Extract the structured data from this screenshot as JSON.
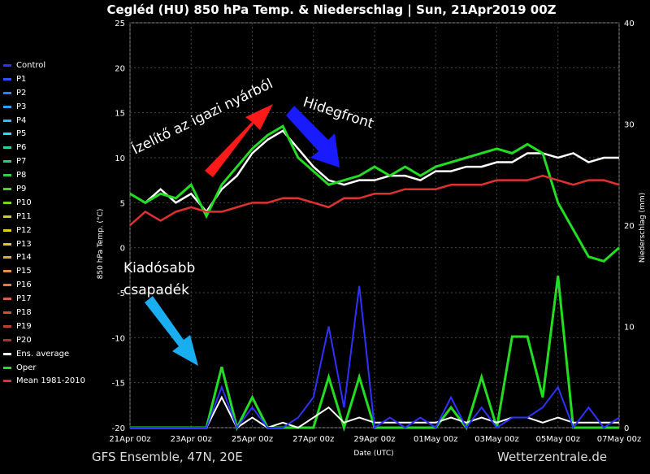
{
  "chart_data": {
    "type": "line",
    "title": "Cegléd  (HU)  850 hPa Temp. & Niederschlag | Sun, 21Apr2019 00Z",
    "xlabel": "Date (UTC)",
    "ylabel_left": "850 hPa Temp. (°C)",
    "ylabel_right": "Niederschlag (mm)",
    "ylim_left": [
      -20,
      25
    ],
    "ylim_right": [
      0,
      40
    ],
    "y_ticks_left": [
      "25",
      "20",
      "15",
      "10",
      "5",
      "0",
      "-5",
      "-10",
      "-15",
      "-20"
    ],
    "y_ticks_right": [
      "40",
      "30",
      "20",
      "10",
      "0"
    ],
    "x_ticks": [
      "21Apr 00z",
      "23Apr 00z",
      "25Apr 00z",
      "27Apr 00z",
      "29Apr 00z",
      "01May 00z",
      "03May 00z",
      "05May 00z",
      "07May 00z"
    ],
    "grid": true,
    "legend_position": "left",
    "days": [
      0,
      0.5,
      1,
      1.5,
      2,
      2.5,
      3,
      3.5,
      4,
      4.5,
      5,
      5.5,
      6,
      6.5,
      7,
      7.5,
      8,
      8.5,
      9,
      9.5,
      10,
      10.5,
      11,
      11.5,
      12,
      12.5,
      13,
      13.5,
      14,
      14.5,
      15,
      15.5,
      16
    ],
    "series": [
      {
        "name": "Ens. average",
        "color": "#ffffff",
        "values": [
          6,
          5,
          6.5,
          5,
          6,
          4,
          6.5,
          8,
          10.5,
          12,
          13,
          11,
          9,
          7.5,
          7,
          7.5,
          7.5,
          8,
          8,
          7.5,
          8.5,
          8.5,
          9,
          9,
          9.5,
          9.5,
          10.5,
          10.5,
          10,
          10.5,
          9.5,
          10,
          10
        ]
      },
      {
        "name": "Oper",
        "color": "#22dd22",
        "values": [
          6,
          5,
          6,
          5.5,
          7,
          3.5,
          7,
          9,
          11,
          12.5,
          13.5,
          10,
          8.5,
          7,
          7.5,
          8,
          9,
          8,
          9,
          8,
          9,
          9.5,
          10,
          10.5,
          11,
          10.5,
          11.5,
          10.5,
          5,
          2,
          -1,
          -1.5,
          0
        ]
      },
      {
        "name": "Mean 1981-2010",
        "color": "#e03030",
        "values": [
          2.5,
          4,
          3,
          4,
          4.5,
          4,
          4,
          4.5,
          5,
          5,
          5.5,
          5.5,
          5,
          4.5,
          5.5,
          5.5,
          6,
          6,
          6.5,
          6.5,
          6.5,
          7,
          7,
          7,
          7.5,
          7.5,
          7.5,
          8,
          7.5,
          7,
          7.5,
          7.5,
          7
        ]
      }
    ],
    "precip_series": [
      {
        "name": "Oper",
        "color": "#22dd22",
        "values": [
          0,
          0,
          0,
          0,
          0,
          0,
          6,
          0,
          3,
          0,
          0,
          0,
          0,
          5,
          0,
          5,
          0,
          0,
          0,
          0,
          0,
          2,
          0,
          5,
          0,
          9,
          9,
          3,
          15,
          0,
          0,
          0,
          0
        ]
      },
      {
        "name": "Ens. average",
        "color": "#ffffff",
        "values": [
          0,
          0,
          0,
          0,
          0,
          0,
          3,
          0,
          1,
          0,
          0.5,
          0,
          1,
          2,
          0.5,
          1,
          0.5,
          0.5,
          0.5,
          0.5,
          0.5,
          1,
          0.5,
          1,
          0.5,
          1,
          1,
          0.5,
          1,
          0.5,
          0.5,
          0.5,
          0.5
        ]
      },
      {
        "name": "Control",
        "color": "#3030ff",
        "values": [
          0,
          0,
          0,
          0,
          0,
          0,
          4,
          0,
          2,
          0,
          0,
          1,
          3,
          10,
          2,
          14,
          0,
          1,
          0,
          1,
          0,
          3,
          0,
          2,
          0,
          1,
          1,
          2,
          4,
          0,
          2,
          0,
          1
        ]
      }
    ]
  },
  "legend": [
    {
      "label": "Control",
      "color": "#3030ff"
    },
    {
      "label": "P1",
      "color": "#2a55ff"
    },
    {
      "label": "P2",
      "color": "#2a7fff"
    },
    {
      "label": "P3",
      "color": "#2aa0ff"
    },
    {
      "label": "P4",
      "color": "#2ac0ff"
    },
    {
      "label": "P5",
      "color": "#2adcff"
    },
    {
      "label": "P6",
      "color": "#2ad0a0"
    },
    {
      "label": "P7",
      "color": "#2ad070"
    },
    {
      "label": "P8",
      "color": "#30d040"
    },
    {
      "label": "P9",
      "color": "#55d025"
    },
    {
      "label": "P10",
      "color": "#7cd020"
    },
    {
      "label": "P11",
      "color": "#c8d020"
    },
    {
      "label": "P12",
      "color": "#e0d020"
    },
    {
      "label": "P13",
      "color": "#e8c030"
    },
    {
      "label": "P14",
      "color": "#e8a830"
    },
    {
      "label": "P15",
      "color": "#e89040"
    },
    {
      "label": "P16",
      "color": "#e87840"
    },
    {
      "label": "P17",
      "color": "#d86040"
    },
    {
      "label": "P18",
      "color": "#d05030"
    },
    {
      "label": "P19",
      "color": "#c04030"
    },
    {
      "label": "P20",
      "color": "#b03030"
    },
    {
      "label": "Ens. average",
      "color": "#ffffff"
    },
    {
      "label": "Oper",
      "color": "#22dd22"
    },
    {
      "label": "Mean 1981-2010",
      "color": "#e03030"
    }
  ],
  "annotations": {
    "summer_taste": "Ízelítő az igazi nyárból",
    "cold_front": "Hidegfront",
    "heavy_rain_1": "Kiadósabb",
    "heavy_rain_2": "csapadék"
  },
  "footer": {
    "left": "GFS Ensemble, 47N, 20E",
    "right": "Wetterzentrale.de"
  }
}
